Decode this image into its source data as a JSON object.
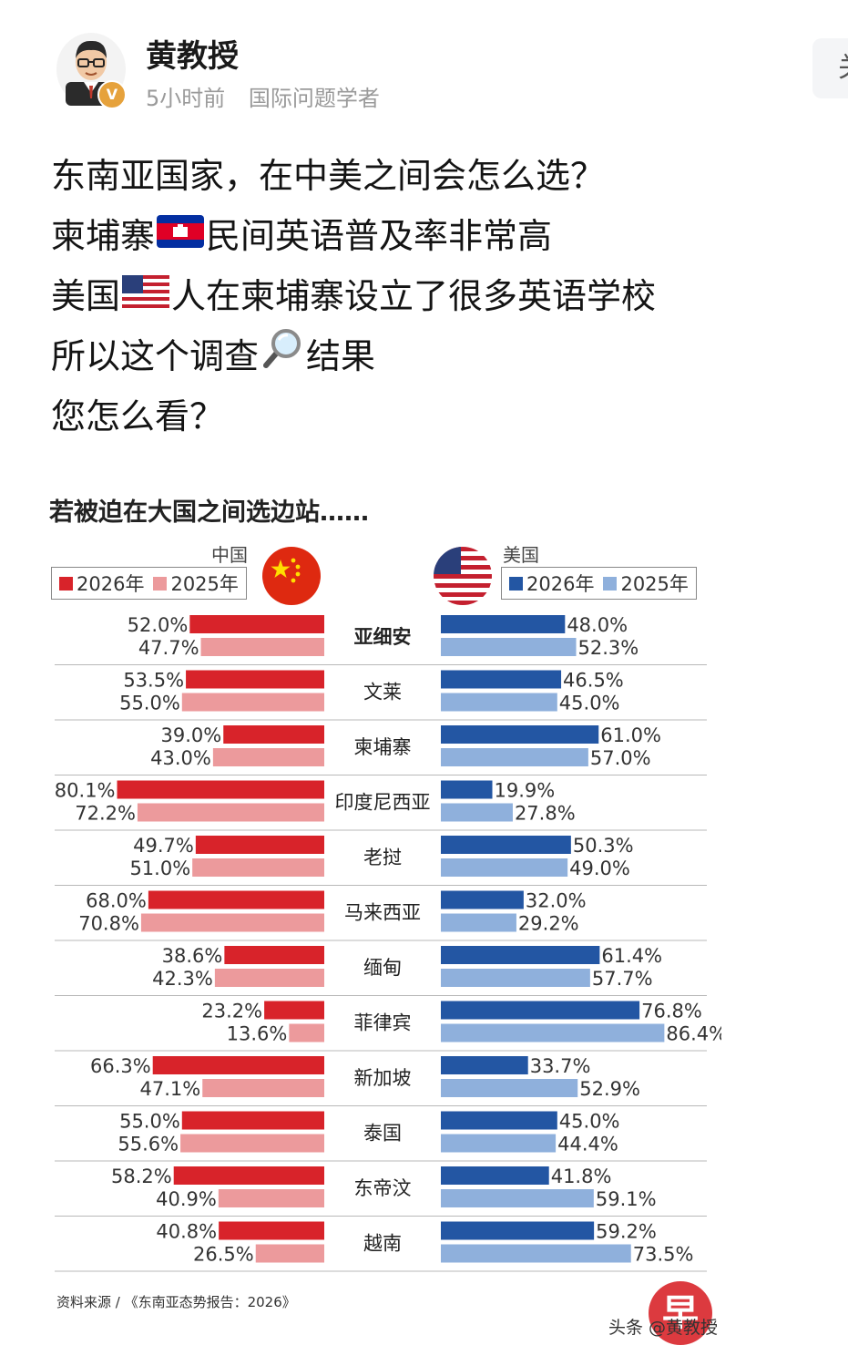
{
  "post": {
    "author": "黄教授",
    "verified_badge": "V",
    "time": "5小时前",
    "title": "国际问题学者",
    "lines": [
      {
        "parts": [
          "东南亚国家，在中美之间会怎么选？"
        ]
      },
      {
        "parts": [
          "柬埔寨",
          "民间英语普及率非常高"
        ],
        "icon": "cambodia-flag-icon"
      },
      {
        "parts": [
          "美国",
          "人在柬埔寨设立了很多英语学校"
        ],
        "icon": "us-flag-icon"
      },
      {
        "parts": [
          "所以这个调查",
          "结果"
        ],
        "icon": "magnifier-icon"
      },
      {
        "parts": [
          "您怎么看？"
        ]
      }
    ]
  },
  "side_button": {
    "label": "关"
  },
  "infographic": {
    "title": "若被迫在大国之间选边站……",
    "left_header": "中国",
    "right_header": "美国",
    "source": "资料来源 / 《东南亚态势报告：2026》",
    "watermark": "头条 @黄教授",
    "logo": "早"
  },
  "chart_data": {
    "type": "bar",
    "title": "若被迫在大国之间选边站……",
    "unit": "%",
    "categories": [
      "亚细安",
      "文莱",
      "柬埔寨",
      "印度尼西亚",
      "老挝",
      "马来西亚",
      "缅甸",
      "菲律宾",
      "新加坡",
      "泰国",
      "东帝汶",
      "越南"
    ],
    "series": [
      {
        "group": "中国",
        "name": "2026年",
        "color": "#d8232a",
        "values": [
          52.0,
          53.5,
          39.0,
          80.1,
          49.7,
          68.0,
          38.6,
          23.2,
          66.3,
          55.0,
          58.2,
          40.8
        ]
      },
      {
        "group": "中国",
        "name": "2025年",
        "color": "#ec9a9c",
        "values": [
          47.7,
          55.0,
          43.0,
          72.2,
          51.0,
          70.8,
          42.3,
          13.6,
          47.1,
          55.6,
          40.9,
          26.5
        ]
      },
      {
        "group": "美国",
        "name": "2026年",
        "color": "#2356a3",
        "values": [
          48.0,
          46.5,
          61.0,
          19.9,
          50.3,
          32.0,
          61.4,
          76.8,
          33.7,
          45.0,
          41.8,
          59.2
        ]
      },
      {
        "group": "美国",
        "name": "2025年",
        "color": "#8fb0dc",
        "values": [
          52.3,
          45.0,
          57.0,
          27.8,
          49.0,
          29.2,
          57.7,
          86.4,
          52.9,
          44.4,
          59.1,
          73.5
        ]
      }
    ],
    "legend": [
      "2026年",
      "2025年"
    ],
    "legend_placement": "top"
  }
}
